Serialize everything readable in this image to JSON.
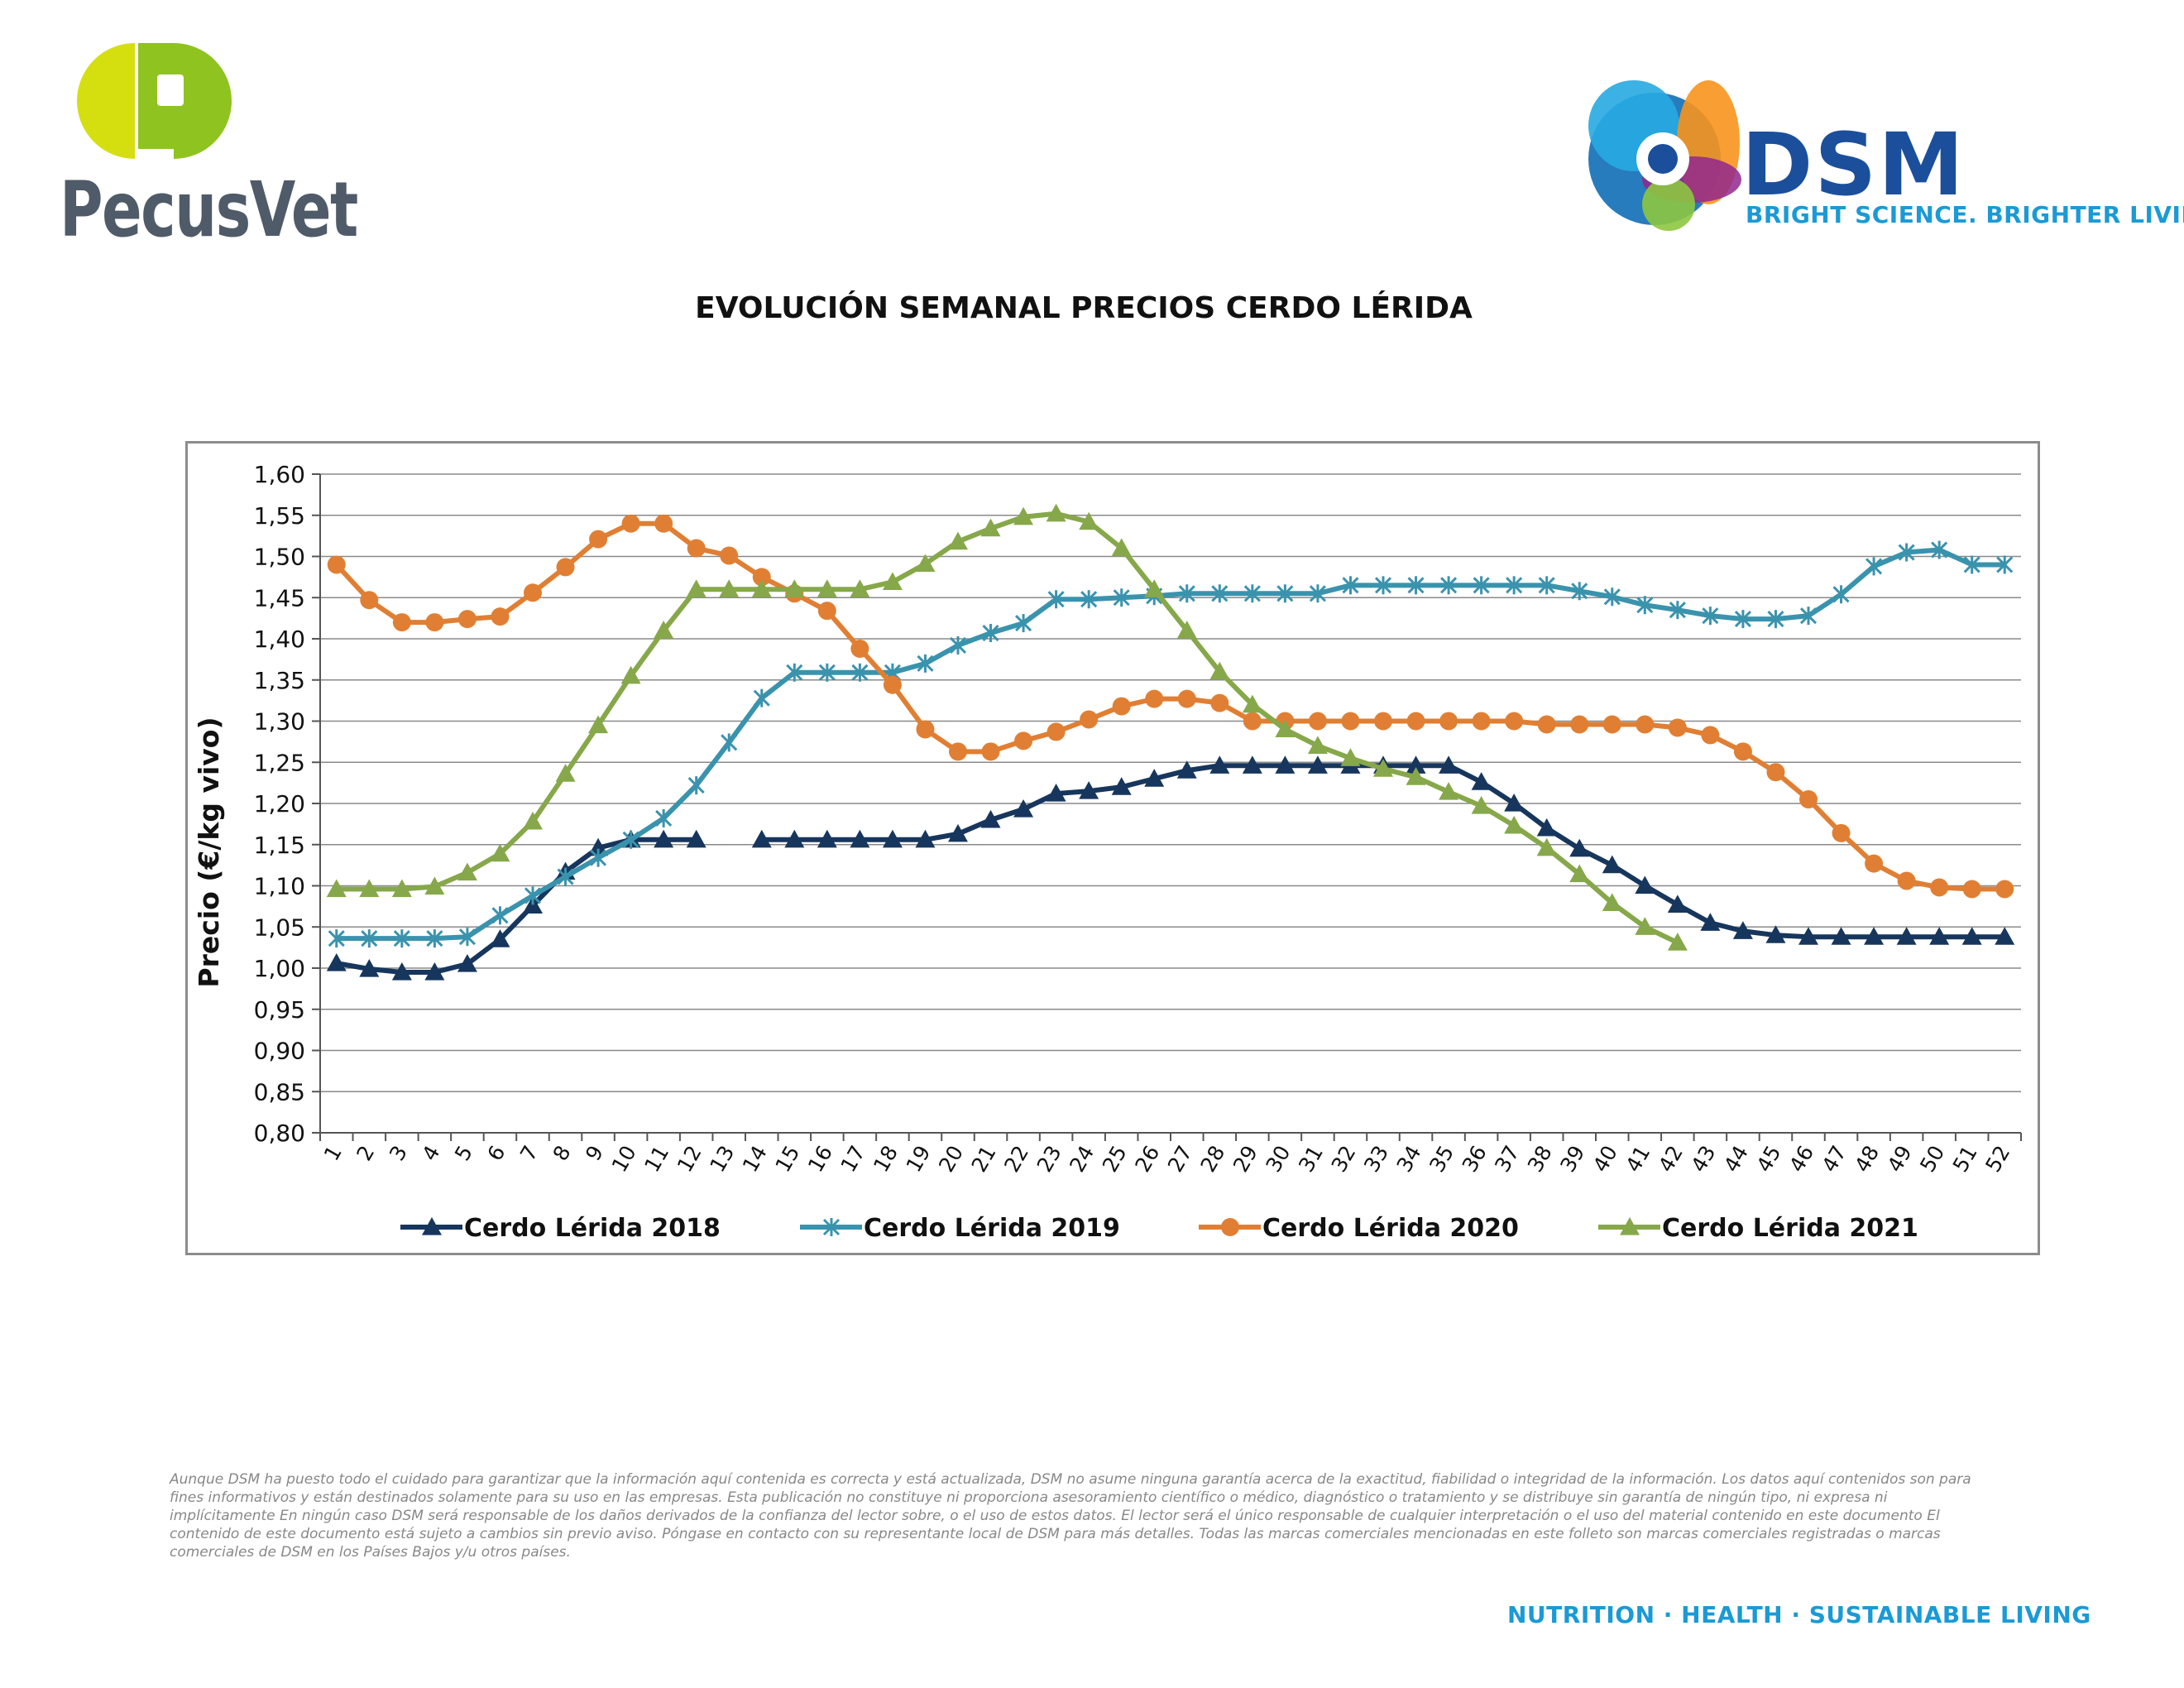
{
  "header": {
    "left_logo_text": "PecusVet",
    "right_logo_text": "DSM",
    "right_logo_tagline": "BRIGHT SCIENCE. BRIGHTER LIVING."
  },
  "colors": {
    "s2018": "#17365d",
    "s2019": "#3a93ad",
    "s2020": "#e07f33",
    "s2021": "#86a84a",
    "pecus_green": "#8fc31f",
    "pecus_yellow": "#d5df0f",
    "dsm_blue": "#1b4f9c",
    "dsm_light_blue": "#1a9ad6"
  },
  "chart_data": {
    "type": "line",
    "title": "EVOLUCIÓN SEMANAL PRECIOS CERDO LÉRIDA",
    "xlabel": "",
    "ylabel": "Precio (€/kg vivo)",
    "ylim": [
      0.8,
      1.6
    ],
    "yticks": [
      "0,80",
      "0,85",
      "0,90",
      "0,95",
      "1,00",
      "1,05",
      "1,10",
      "1,15",
      "1,20",
      "1,25",
      "1,30",
      "1,35",
      "1,40",
      "1,45",
      "1,50",
      "1,55",
      "1,60"
    ],
    "categories": [
      "1",
      "2",
      "3",
      "4",
      "5",
      "6",
      "7",
      "8",
      "9",
      "10",
      "11",
      "12",
      "13",
      "14",
      "15",
      "16",
      "17",
      "18",
      "19",
      "20",
      "21",
      "22",
      "23",
      "24",
      "25",
      "26",
      "27",
      "28",
      "29",
      "30",
      "31",
      "32",
      "33",
      "34",
      "35",
      "36",
      "37",
      "38",
      "39",
      "40",
      "41",
      "42",
      "43",
      "44",
      "45",
      "46",
      "47",
      "48",
      "49",
      "50",
      "51",
      "52"
    ],
    "grid": true,
    "legend_position": "bottom",
    "series": [
      {
        "name": "Cerdo Lérida 2018",
        "marker": "triangle",
        "color_key": "s2018",
        "values": [
          1.006,
          0.999,
          0.995,
          0.995,
          1.005,
          1.035,
          1.076,
          1.117,
          1.146,
          1.156,
          1.156,
          1.156,
          null,
          1.156,
          1.156,
          1.156,
          1.156,
          1.156,
          1.156,
          1.163,
          1.18,
          1.193,
          1.212,
          1.215,
          1.22,
          1.23,
          1.24,
          1.246,
          1.246,
          1.246,
          1.246,
          1.246,
          1.246,
          1.246,
          1.246,
          1.226,
          1.2,
          1.17,
          1.145,
          1.125,
          1.1,
          1.077,
          1.055,
          1.045,
          1.04,
          1.038,
          1.038,
          1.038,
          1.038,
          1.038,
          1.038,
          1.038
        ]
      },
      {
        "name": "Cerdo Lérida 2019",
        "marker": "x",
        "color_key": "s2019",
        "values": [
          1.036,
          1.036,
          1.036,
          1.036,
          1.038,
          1.064,
          1.088,
          1.111,
          1.134,
          1.156,
          1.182,
          1.222,
          1.274,
          1.328,
          1.359,
          1.359,
          1.359,
          1.359,
          1.37,
          1.392,
          1.407,
          1.419,
          1.448,
          1.448,
          1.45,
          1.452,
          1.455,
          1.455,
          1.455,
          1.455,
          1.455,
          1.465,
          1.465,
          1.465,
          1.465,
          1.465,
          1.465,
          1.465,
          1.458,
          1.451,
          1.441,
          1.435,
          1.428,
          1.424,
          1.424,
          1.428,
          1.454,
          1.488,
          1.505,
          1.508,
          1.49,
          1.49
        ]
      },
      {
        "name": "Cerdo Lérida 2020",
        "marker": "circle",
        "color_key": "s2020",
        "values": [
          1.49,
          1.447,
          1.42,
          1.42,
          1.424,
          1.427,
          1.456,
          1.487,
          1.521,
          1.54,
          1.54,
          1.51,
          1.501,
          1.475,
          1.455,
          1.434,
          1.388,
          1.344,
          1.29,
          1.263,
          1.263,
          1.276,
          1.287,
          1.302,
          1.318,
          1.327,
          1.327,
          1.322,
          1.3,
          1.3,
          1.3,
          1.3,
          1.3,
          1.3,
          1.3,
          1.3,
          1.3,
          1.296,
          1.296,
          1.296,
          1.296,
          1.292,
          1.283,
          1.263,
          1.238,
          1.205,
          1.164,
          1.127,
          1.106,
          1.098,
          1.096,
          1.096
        ]
      },
      {
        "name": "Cerdo Lérida 2021",
        "marker": "triangle",
        "color_key": "s2021",
        "values": [
          1.096,
          1.096,
          1.096,
          1.099,
          1.116,
          1.139,
          1.178,
          1.236,
          1.295,
          1.355,
          1.41,
          1.46,
          1.46,
          1.46,
          1.46,
          1.46,
          1.46,
          1.469,
          1.491,
          1.518,
          1.534,
          1.548,
          1.552,
          1.542,
          1.51,
          1.46,
          1.41,
          1.36,
          1.32,
          1.29,
          1.27,
          1.255,
          1.242,
          1.232,
          1.214,
          1.197,
          1.173,
          1.146,
          1.114,
          1.079,
          1.05,
          1.031,
          null,
          null,
          null,
          null,
          null,
          null,
          null,
          null,
          null,
          null
        ]
      }
    ]
  },
  "disclaimer": "Aunque DSM ha puesto todo el cuidado para garantizar que la información aquí contenida es correcta y está actualizada, DSM no asume ninguna garantía acerca de la exactitud, fiabilidad o integridad de la información. Los datos aquí contenidos son para fines informativos y están destinados solamente para su uso en las empresas. Esta publicación no constituye ni proporciona asesoramiento científico o médico, diagnóstico o tratamiento y se distribuye sin garantía de ningún tipo, ni expresa ni implícitamente En ningún caso DSM será responsable de los daños derivados de la confianza del lector sobre, o el uso de estos datos. El lector será el único responsable de cualquier interpretación o el uso del material contenido en este documento El contenido de este documento está sujeto a cambios sin previo aviso. Póngase en contacto con su representante local de DSM para más detalles. Todas las marcas comerciales mencionadas en este folleto son marcas comerciales registradas o marcas comerciales de DSM en los Países Bajos y/u otros países.",
  "footer": {
    "slogan": "NUTRITION · HEALTH · SUSTAINABLE LIVING"
  }
}
